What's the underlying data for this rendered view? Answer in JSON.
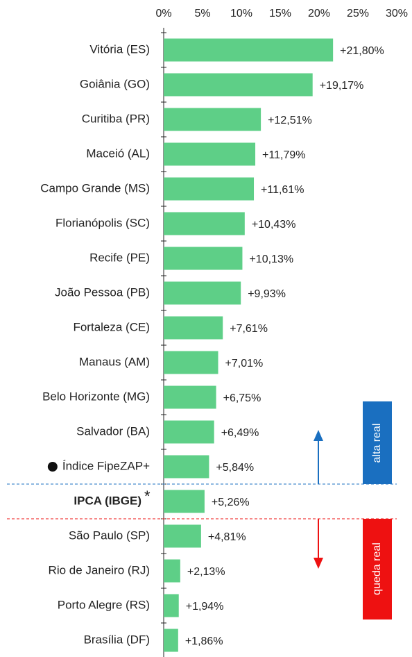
{
  "chart_data": {
    "type": "hbar",
    "categories": [
      "Vitória (ES)",
      "Goiânia (GO)",
      "Curitiba (PR)",
      "Maceió (AL)",
      "Campo Grande (MS)",
      "Florianópolis (SC)",
      "Recife (PE)",
      "João Pessoa (PB)",
      "Fortaleza (CE)",
      "Manaus (AM)",
      "Belo Horizonte (MG)",
      "Salvador (BA)",
      "Índice FipeZAP+",
      "IPCA (IBGE)",
      "São Paulo (SP)",
      "Rio de Janeiro (RJ)",
      "Porto Alegre (RS)",
      "Brasília (DF)"
    ],
    "values": [
      21.8,
      19.17,
      12.51,
      11.79,
      11.61,
      10.43,
      10.13,
      9.93,
      7.61,
      7.01,
      6.75,
      6.49,
      5.84,
      5.26,
      4.81,
      2.13,
      1.94,
      1.86
    ],
    "value_labels": [
      "+21,80%",
      "+19,17%",
      "+12,51%",
      "+11,79%",
      "+11,61%",
      "+10,43%",
      "+10,13%",
      "+9,93%",
      "+7,61%",
      "+7,01%",
      "+6,75%",
      "+6,49%",
      "+5,84%",
      "+5,26%",
      "+4,81%",
      "+2,13%",
      "+1,94%",
      "+1,86%"
    ],
    "color": "#5ecf87",
    "xlim": [
      0,
      30
    ],
    "xticks": [
      {
        "value": 0,
        "label": "0%"
      },
      {
        "value": 5,
        "label": "5%"
      },
      {
        "value": 10,
        "label": "10%"
      },
      {
        "value": 15,
        "label": "15%"
      },
      {
        "value": 20,
        "label": "20%"
      },
      {
        "value": 25,
        "label": "25%"
      },
      {
        "value": 30,
        "label": "30%"
      }
    ],
    "footnote_category": "IPCA (IBGE)",
    "footnote_mark": "*",
    "dot_category": "Índice FipeZAP+",
    "zones": [
      {
        "label": "alta real",
        "color": "#1a6fc0"
      },
      {
        "label": "queda real",
        "color": "#ee1111"
      }
    ]
  }
}
